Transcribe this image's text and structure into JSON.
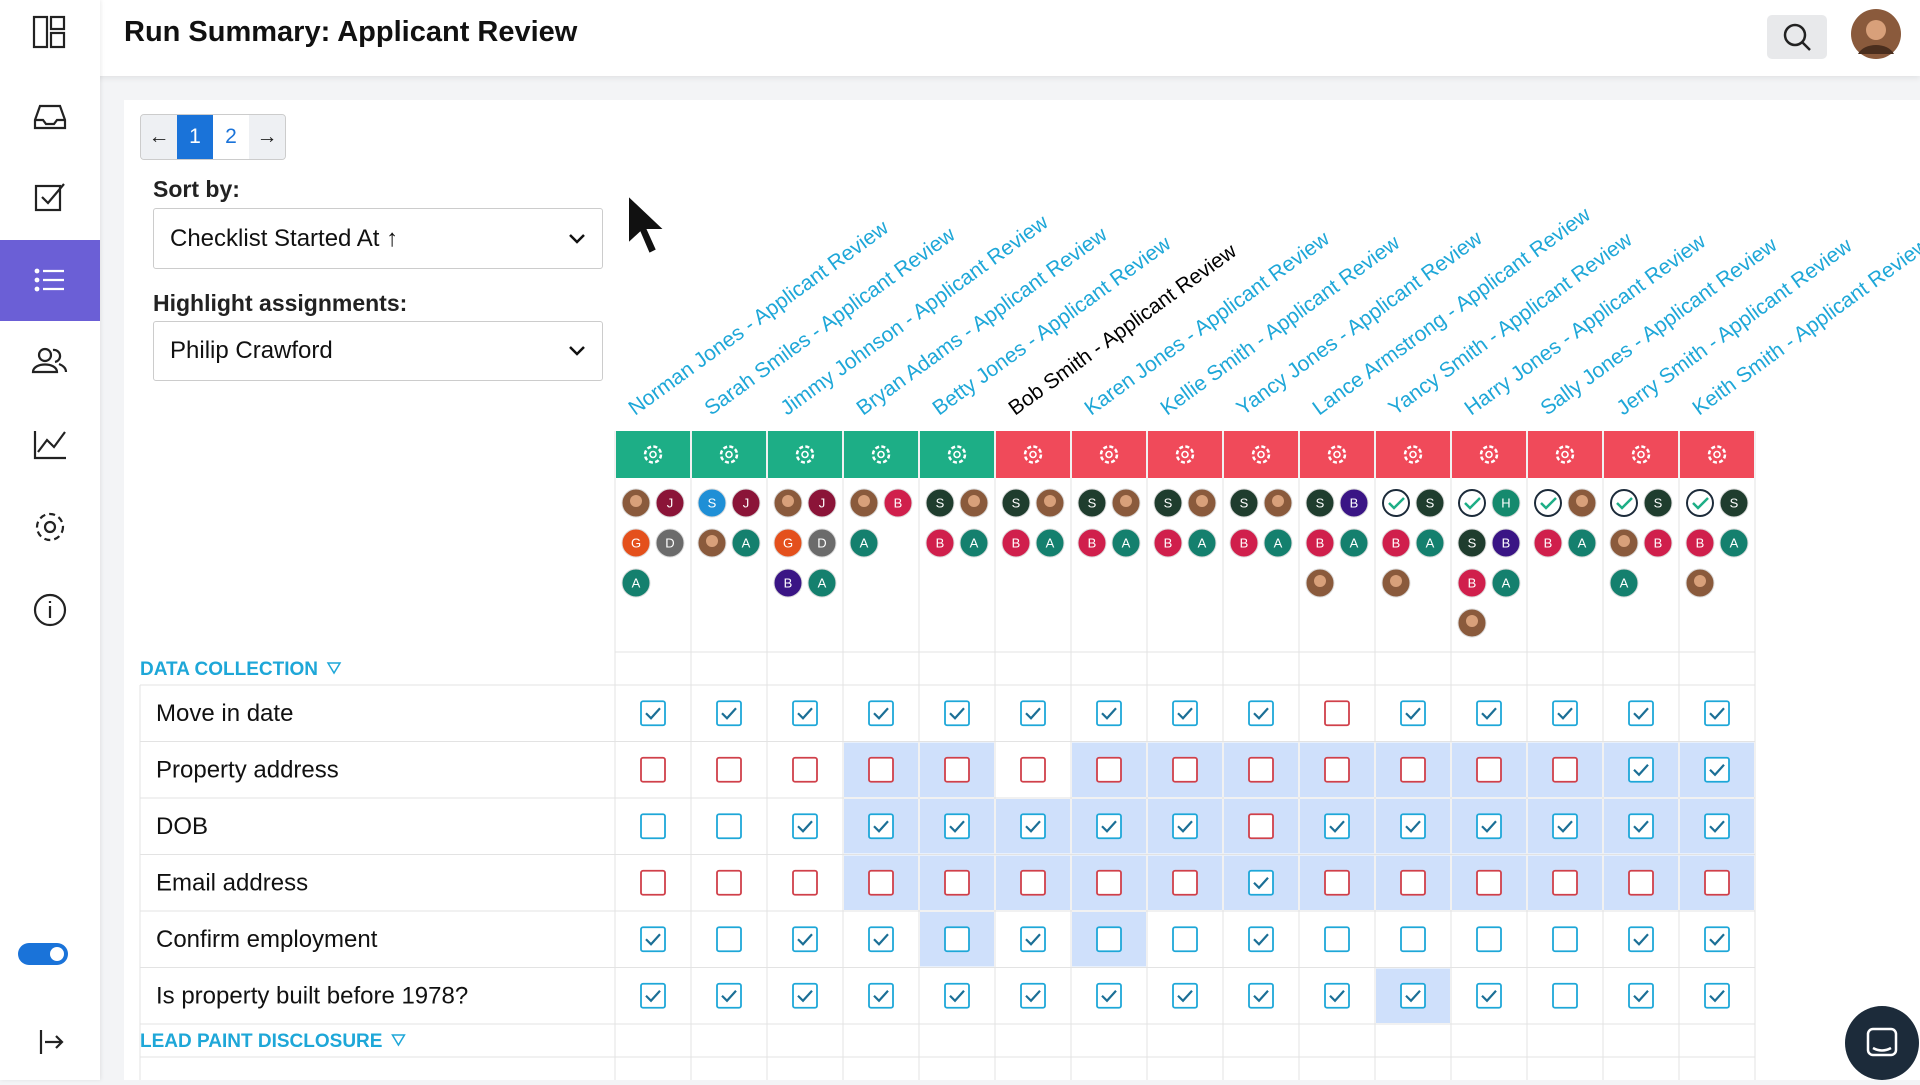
{
  "header": {
    "title": "Run Summary: Applicant Review"
  },
  "pagination": {
    "prev": "←",
    "pages": [
      "1",
      "2"
    ],
    "next": "→",
    "current": 0
  },
  "sort": {
    "label": "Sort by:",
    "value": "Checklist Started At ↑"
  },
  "highlight": {
    "label": "Highlight assignments:",
    "value": "Philip Crawford"
  },
  "columns": [
    {
      "name": "Norman Jones - Applicant Review",
      "status_color": "#1dae86",
      "name_color": "#1ea7d8",
      "assignees": [
        {
          "photo": true
        },
        {
          "initial": "J",
          "color": "#8b1438"
        },
        {
          "initial": "G",
          "color": "#e4501c"
        },
        {
          "initial": "D",
          "color": "#6b6b6b"
        },
        {
          "initial": "A",
          "color": "#14806e"
        }
      ]
    },
    {
      "name": "Sarah Smiles - Applicant Review",
      "status_color": "#1dae86",
      "name_color": "#1ea7d8",
      "assignees": [
        {
          "initial": "S",
          "color": "#1f8fd6"
        },
        {
          "initial": "J",
          "color": "#8b1438"
        },
        {
          "photo": true
        },
        {
          "initial": "A",
          "color": "#14806e"
        }
      ]
    },
    {
      "name": "Jimmy Johnson - Applicant Review",
      "status_color": "#1dae86",
      "name_color": "#1ea7d8",
      "assignees": [
        {
          "photo": true
        },
        {
          "initial": "J",
          "color": "#8b1438"
        },
        {
          "initial": "G",
          "color": "#e4501c"
        },
        {
          "initial": "D",
          "color": "#6b6b6b"
        },
        {
          "initial": "B",
          "color": "#3a1585"
        },
        {
          "initial": "A",
          "color": "#14806e"
        }
      ]
    },
    {
      "name": "Bryan Adams - Applicant Review",
      "status_color": "#1dae86",
      "name_color": "#1ea7d8",
      "assignees": [
        {
          "photo": true
        },
        {
          "initial": "B",
          "color": "#d01f4c"
        },
        {
          "initial": "A",
          "color": "#14806e"
        }
      ]
    },
    {
      "name": "Betty Jones - Applicant Review",
      "status_color": "#1dae86",
      "name_color": "#1ea7d8",
      "assignees": [
        {
          "initial": "S",
          "color": "#1f3d2e"
        },
        {
          "photo": true
        },
        {
          "initial": "B",
          "color": "#d01f4c"
        },
        {
          "initial": "A",
          "color": "#14806e"
        }
      ]
    },
    {
      "name": "Bob Smith - Applicant Review",
      "status_color": "#f04a5a",
      "name_color": "#000000",
      "assignees": [
        {
          "initial": "S",
          "color": "#1f3d2e"
        },
        {
          "photo": true
        },
        {
          "initial": "B",
          "color": "#d01f4c"
        },
        {
          "initial": "A",
          "color": "#14806e"
        }
      ]
    },
    {
      "name": "Karen Jones - Applicant Review",
      "status_color": "#f04a5a",
      "name_color": "#1ea7d8",
      "assignees": [
        {
          "initial": "S",
          "color": "#1f3d2e"
        },
        {
          "photo": true
        },
        {
          "initial": "B",
          "color": "#d01f4c"
        },
        {
          "initial": "A",
          "color": "#14806e"
        }
      ]
    },
    {
      "name": "Kellie Smith - Applicant Review",
      "status_color": "#f04a5a",
      "name_color": "#1ea7d8",
      "assignees": [
        {
          "initial": "S",
          "color": "#1f3d2e"
        },
        {
          "photo": true
        },
        {
          "initial": "B",
          "color": "#d01f4c"
        },
        {
          "initial": "A",
          "color": "#14806e"
        }
      ]
    },
    {
      "name": "Yancy Jones - Applicant Review",
      "status_color": "#f04a5a",
      "name_color": "#1ea7d8",
      "assignees": [
        {
          "initial": "S",
          "color": "#1f3d2e"
        },
        {
          "photo": true
        },
        {
          "initial": "B",
          "color": "#d01f4c"
        },
        {
          "initial": "A",
          "color": "#14806e"
        }
      ]
    },
    {
      "name": "Lance Armstrong - Applicant Review",
      "status_color": "#f04a5a",
      "name_color": "#1ea7d8",
      "assignees": [
        {
          "initial": "S",
          "color": "#1f3d2e"
        },
        {
          "initial": "B",
          "color": "#3a1585"
        },
        {
          "initial": "B",
          "color": "#d01f4c"
        },
        {
          "initial": "A",
          "color": "#14806e"
        },
        {
          "photo": true
        }
      ]
    },
    {
      "name": "Yancy Smith - Applicant Review",
      "status_color": "#f04a5a",
      "name_color": "#1ea7d8",
      "assignees": [
        {
          "done": true
        },
        {
          "initial": "S",
          "color": "#1f3d2e"
        },
        {
          "initial": "B",
          "color": "#d01f4c"
        },
        {
          "initial": "A",
          "color": "#14806e"
        },
        {
          "photo": true
        }
      ]
    },
    {
      "name": "Harry Jones - Applicant Review",
      "status_color": "#f04a5a",
      "name_color": "#1ea7d8",
      "assignees": [
        {
          "done": true
        },
        {
          "initial": "H",
          "color": "#158a6e"
        },
        {
          "initial": "S",
          "color": "#1f3d2e"
        },
        {
          "initial": "B",
          "color": "#3a1585"
        },
        {
          "initial": "B",
          "color": "#d01f4c"
        },
        {
          "initial": "A",
          "color": "#14806e"
        },
        {
          "photo": true
        }
      ]
    },
    {
      "name": "Sally Jones - Applicant Review",
      "status_color": "#f04a5a",
      "name_color": "#1ea7d8",
      "assignees": [
        {
          "done": true
        },
        {
          "photo": true
        },
        {
          "initial": "B",
          "color": "#d01f4c"
        },
        {
          "initial": "A",
          "color": "#14806e"
        }
      ]
    },
    {
      "name": "Jerry Smith - Applicant Review",
      "status_color": "#f04a5a",
      "name_color": "#1ea7d8",
      "assignees": [
        {
          "done": true
        },
        {
          "initial": "S",
          "color": "#1f3d2e"
        },
        {
          "photo": true
        },
        {
          "initial": "B",
          "color": "#d01f4c"
        },
        {
          "initial": "A",
          "color": "#14806e"
        }
      ]
    },
    {
      "name": "Keith Smith - Applicant Review",
      "status_color": "#f04a5a",
      "name_color": "#1ea7d8",
      "assignees": [
        {
          "done": true
        },
        {
          "initial": "S",
          "color": "#1f3d2e"
        },
        {
          "initial": "B",
          "color": "#d01f4c"
        },
        {
          "initial": "A",
          "color": "#14806e"
        },
        {
          "photo": true
        }
      ]
    }
  ],
  "sections": [
    {
      "title": "DATA COLLECTION",
      "rows": [
        {
          "label": "Move in date",
          "cells": [
            "checked",
            "checked",
            "checked",
            "checked",
            "checked",
            "checked",
            "checked",
            "checked",
            "checked",
            "missing",
            "checked",
            "checked",
            "checked",
            "checked",
            "checked"
          ],
          "highlighted": [
            false,
            false,
            false,
            false,
            false,
            false,
            false,
            false,
            false,
            false,
            false,
            false,
            false,
            false,
            false
          ]
        },
        {
          "label": "Property address",
          "cells": [
            "missing",
            "missing",
            "missing",
            "missing",
            "missing",
            "missing",
            "missing",
            "missing",
            "missing",
            "missing",
            "missing",
            "missing",
            "missing",
            "checked",
            "checked"
          ],
          "highlighted": [
            false,
            false,
            false,
            true,
            true,
            false,
            true,
            true,
            true,
            true,
            true,
            true,
            true,
            true,
            true
          ]
        },
        {
          "label": "DOB",
          "cells": [
            "empty",
            "empty",
            "checked",
            "checked",
            "checked",
            "checked",
            "checked",
            "checked",
            "missing",
            "checked",
            "checked",
            "checked",
            "checked",
            "checked",
            "checked"
          ],
          "highlighted": [
            false,
            false,
            false,
            true,
            true,
            true,
            true,
            true,
            true,
            true,
            true,
            true,
            true,
            true,
            true
          ]
        },
        {
          "label": "Email address",
          "cells": [
            "missing",
            "missing",
            "missing",
            "missing",
            "missing",
            "missing",
            "missing",
            "missing",
            "checked",
            "missing",
            "missing",
            "missing",
            "missing",
            "missing",
            "missing"
          ],
          "highlighted": [
            false,
            false,
            false,
            true,
            true,
            true,
            true,
            true,
            true,
            true,
            true,
            true,
            true,
            true,
            true
          ]
        },
        {
          "label": "Confirm employment",
          "cells": [
            "checked",
            "empty",
            "checked",
            "checked",
            "empty",
            "checked",
            "empty",
            "empty",
            "checked",
            "empty",
            "empty",
            "empty",
            "empty",
            "checked",
            "checked"
          ],
          "highlighted": [
            false,
            false,
            false,
            false,
            true,
            false,
            true,
            false,
            false,
            false,
            false,
            false,
            false,
            false,
            false
          ]
        },
        {
          "label": "Is property built before 1978?",
          "cells": [
            "checked",
            "checked",
            "checked",
            "checked",
            "checked",
            "checked",
            "checked",
            "checked",
            "checked",
            "checked",
            "checked",
            "checked",
            "empty",
            "checked",
            "checked"
          ],
          "highlighted": [
            false,
            false,
            false,
            false,
            false,
            false,
            false,
            false,
            false,
            false,
            true,
            false,
            false,
            false,
            false
          ]
        }
      ]
    },
    {
      "title": "LEAD PAINT DISCLOSURE",
      "rows": []
    }
  ]
}
